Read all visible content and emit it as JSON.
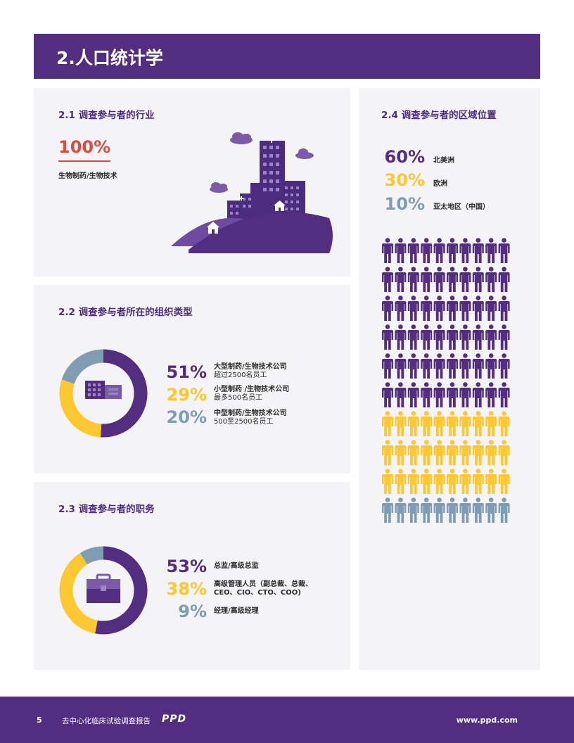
{
  "header": {
    "title": "2.人口统计学"
  },
  "industry": {
    "title": "2.1 调查参与者的行业",
    "percent": "100%",
    "label": "生物制药/生物技术"
  },
  "org_type": {
    "title": "2.2 调查参与者所在的组织类型",
    "items": [
      {
        "percent": "51%",
        "label": "大型制药/生物技术公司",
        "sub": "超过2500名员工",
        "value": 51,
        "color": "#532d80"
      },
      {
        "percent": "29%",
        "label": "小型制药 /生物技术公司",
        "sub": "最多500名员工",
        "value": 29,
        "color": "#fdc82f"
      },
      {
        "percent": "20%",
        "label": "中型制药/生物技术公司",
        "sub": "500至2500名员工",
        "value": 20,
        "color": "#7f9db2"
      }
    ]
  },
  "roles": {
    "title": "2.3 调查参与者的职务",
    "items": [
      {
        "percent": "53%",
        "label": "总监/高级总监",
        "label2": "",
        "value": 53,
        "color": "#532d80"
      },
      {
        "percent": "38%",
        "label": "高级管理人员（副总裁、总裁、",
        "label2": "CEO、CIO、CTO、COO)",
        "value": 38,
        "color": "#fdc82f"
      },
      {
        "percent": "9%",
        "label": "经理/高级经理",
        "label2": "",
        "value": 9,
        "color": "#7f9db2"
      }
    ]
  },
  "region": {
    "title": "2.4 调查参与者的区域位置",
    "items": [
      {
        "percent": "60%",
        "label": "北美洲",
        "value": 60,
        "color": "#532d80"
      },
      {
        "percent": "30%",
        "label": "欧洲",
        "value": 30,
        "color": "#fdc82f"
      },
      {
        "percent": "10%",
        "label": "亚太地区（中国）",
        "value": 10,
        "color": "#7f9db2"
      }
    ]
  },
  "footer": {
    "page": "5",
    "report": "去中心化临床试验调查报告",
    "logo": "PPD",
    "url": "www.ppd.com"
  }
}
